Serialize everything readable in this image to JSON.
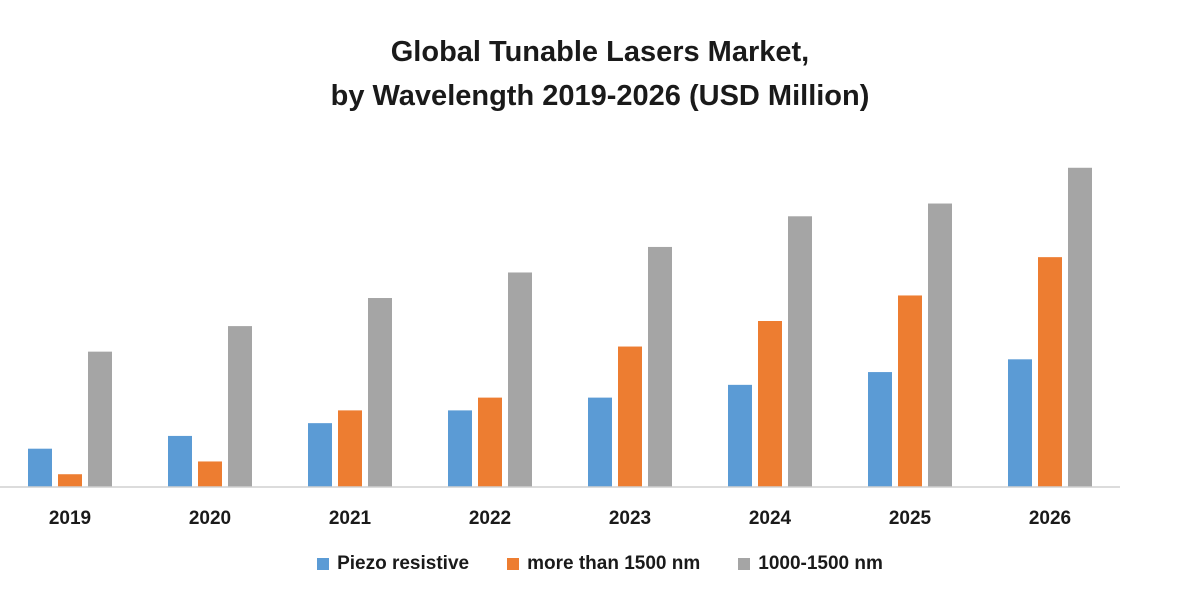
{
  "chart_data": {
    "type": "bar",
    "title": [
      "Global Tunable Lasers Market,",
      "by Wavelength 2019-2026 (USD Million)"
    ],
    "categories": [
      "2019",
      "2020",
      "2021",
      "2022",
      "2023",
      "2024",
      "2025",
      "2026"
    ],
    "series": [
      {
        "name": "Piezo resistive",
        "color": "#5b9bd5",
        "values": [
          15,
          20,
          25,
          30,
          35,
          40,
          45,
          50
        ]
      },
      {
        "name": "more than 1500 nm",
        "color": "#ed7d31",
        "values": [
          5,
          10,
          30,
          35,
          55,
          65,
          75,
          90
        ]
      },
      {
        "name": "1000-1500 nm",
        "color": "#a5a5a5",
        "values": [
          53,
          63,
          74,
          84,
          94,
          106,
          111,
          125
        ]
      }
    ],
    "ylim": [
      0,
      130
    ],
    "grid": false,
    "legend_position": "bottom"
  }
}
